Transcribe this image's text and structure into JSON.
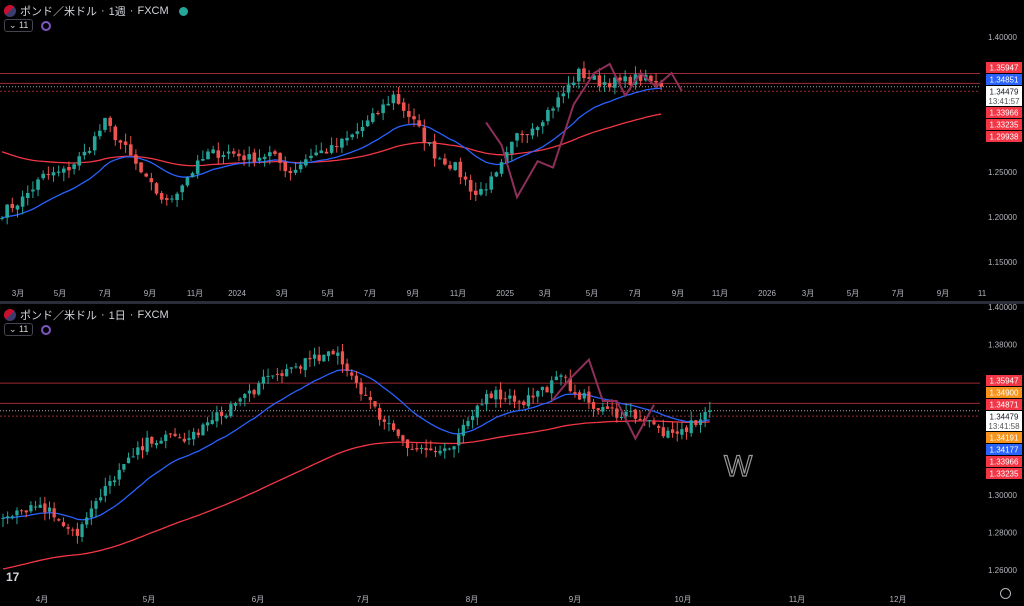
{
  "panes": [
    {
      "legend": {
        "symbol": "ポンド／米ドル",
        "interval": "1週",
        "source": "FXCM"
      },
      "indicator_count": "11"
    },
    {
      "legend": {
        "symbol": "ポンド／米ドル",
        "interval": "1日",
        "source": "FXCM"
      },
      "indicator_count": "11"
    }
  ],
  "colors": {
    "up": "#26a69a",
    "down": "#ef5350",
    "ma_fast": "#2962ff",
    "ma_slow": "#f23645",
    "drawing": "#8e2f5a",
    "label_red": "#f23645",
    "label_blue": "#2962ff",
    "label_orange": "#f7931a"
  },
  "chart_data": [
    {
      "type": "candlestick",
      "title": "ポンド／米ドル · 1週 · FXCM",
      "ylim": [
        1.13,
        1.41
      ],
      "y_ticks": [
        "1.40000",
        "1.25000",
        "1.20000",
        "1.15000"
      ],
      "x_ticks": [
        "3月",
        "5月",
        "7月",
        "9月",
        "11月",
        "2024",
        "3月",
        "5月",
        "7月",
        "9月",
        "11月",
        "2025",
        "3月",
        "5月",
        "7月",
        "9月",
        "11月",
        "2026",
        "3月",
        "5月",
        "7月",
        "9月",
        "11"
      ],
      "monthly_closes": [
        1.205,
        1.22,
        1.245,
        1.25,
        1.27,
        1.305,
        1.275,
        1.24,
        1.215,
        1.245,
        1.27,
        1.272,
        1.265,
        1.27,
        1.25,
        1.27,
        1.275,
        1.29,
        1.31,
        1.335,
        1.305,
        1.27,
        1.255,
        1.225,
        1.245,
        1.29,
        1.305,
        1.33,
        1.36,
        1.35,
        1.35,
        1.355,
        1.3448
      ],
      "price_labels": [
        {
          "value": "1.35947",
          "color": "red"
        },
        {
          "value": "1.34851",
          "color": "blue"
        },
        {
          "value": "1.34479",
          "sub": "13:41:57",
          "color": "white"
        },
        {
          "value": "1.33966",
          "color": "red"
        },
        {
          "value": "1.33235",
          "color": "red"
        },
        {
          "value": "1.29938",
          "color": "red"
        }
      ],
      "hlines": [
        1.35947,
        1.34851,
        1.33966
      ],
      "zigzag": [
        [
          94,
          1.305
        ],
        [
          97,
          1.28
        ],
        [
          100,
          1.222
        ],
        [
          104,
          1.262
        ],
        [
          107,
          1.255
        ],
        [
          111,
          1.325
        ],
        [
          115,
          1.36
        ],
        [
          118,
          1.37
        ],
        [
          121,
          1.335
        ],
        [
          124,
          1.36
        ],
        [
          127,
          1.345
        ],
        [
          130,
          1.36
        ],
        [
          132,
          1.34
        ]
      ]
    },
    {
      "type": "candlestick",
      "title": "ポンド／米ドル · 1日 · FXCM",
      "ylim": [
        1.25,
        1.4
      ],
      "y_ticks": [
        "1.40000",
        "1.38000",
        "1.30000",
        "1.28000",
        "1.26000"
      ],
      "x_ticks": [
        "4月",
        "5月",
        "6月",
        "7月",
        "8月",
        "9月",
        "10月",
        "11月",
        "12月"
      ],
      "halfmonth_closes": [
        1.29,
        1.295,
        1.28,
        1.31,
        1.33,
        1.33,
        1.345,
        1.36,
        1.37,
        1.375,
        1.345,
        1.325,
        1.322,
        1.355,
        1.35,
        1.362,
        1.345,
        1.343,
        1.33,
        1.3448
      ],
      "price_labels": [
        {
          "value": "1.35947",
          "color": "red"
        },
        {
          "value": "1.34900",
          "color": "orange"
        },
        {
          "value": "1.34871",
          "color": "red"
        },
        {
          "value": "1.34479",
          "sub": "13:41:58",
          "color": "white"
        },
        {
          "value": "1.34191",
          "color": "orange"
        },
        {
          "value": "1.34177",
          "color": "blue"
        },
        {
          "value": "1.33966",
          "color": "red"
        },
        {
          "value": "1.33235",
          "color": "red"
        }
      ],
      "hlines": [
        1.35947,
        1.34871,
        1.34191
      ],
      "zigzag": [
        [
          118,
          1.35
        ],
        [
          122,
          1.362
        ],
        [
          126,
          1.372
        ],
        [
          129,
          1.35
        ],
        [
          132,
          1.35
        ],
        [
          136,
          1.33
        ],
        [
          140,
          1.348
        ]
      ],
      "annotation": "W"
    }
  ],
  "branding": {
    "logo": "TV"
  }
}
